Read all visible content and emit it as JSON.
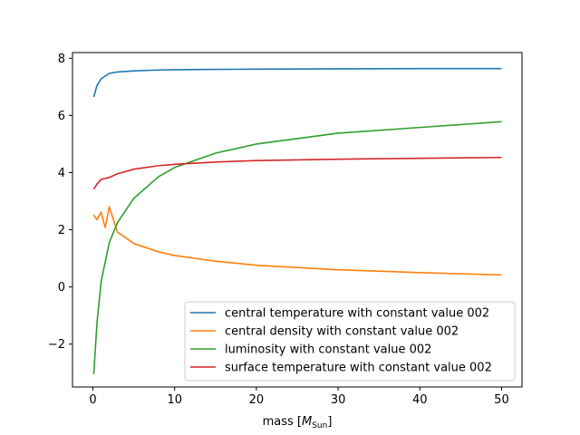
{
  "chart_data": {
    "type": "line",
    "title": "",
    "xlabel": "mass",
    "xlabel_unit_symbol": "M",
    "xlabel_unit_sub": "Sun",
    "ylabel": "",
    "xlim": [
      -2.5,
      52.5
    ],
    "ylim": [
      -3.5,
      8.2
    ],
    "xticks": [
      0,
      10,
      20,
      30,
      40,
      50
    ],
    "yticks": [
      -2,
      0,
      2,
      4,
      6,
      8
    ],
    "xtick_labels": [
      "0",
      "10",
      "20",
      "30",
      "40",
      "50"
    ],
    "ytick_labels": [
      "−2",
      "0",
      "2",
      "4",
      "6",
      "8"
    ],
    "grid": false,
    "legend_position": "lower-right",
    "series": [
      {
        "name": "central temperature with constant value 002",
        "color": "#1f77b4",
        "x": [
          0.1,
          0.5,
          1,
          2,
          3,
          5,
          8,
          10,
          15,
          20,
          30,
          40,
          50
        ],
        "y": [
          6.65,
          7.05,
          7.28,
          7.47,
          7.52,
          7.56,
          7.59,
          7.6,
          7.61,
          7.62,
          7.63,
          7.64,
          7.64
        ]
      },
      {
        "name": "central density with constant value 002",
        "color": "#ff7f0e",
        "x": [
          0.1,
          0.5,
          1,
          1.5,
          2,
          3,
          5,
          8,
          10,
          15,
          20,
          30,
          40,
          50
        ],
        "y": [
          2.52,
          2.35,
          2.62,
          2.08,
          2.8,
          1.92,
          1.52,
          1.23,
          1.1,
          0.9,
          0.76,
          0.6,
          0.5,
          0.42
        ]
      },
      {
        "name": "luminosity with constant value 002",
        "color": "#2ca02c",
        "x": [
          0.1,
          0.5,
          1,
          2,
          3,
          5,
          8,
          10,
          15,
          20,
          30,
          40,
          50
        ],
        "y": [
          -3.05,
          -1.25,
          0.18,
          1.55,
          2.25,
          3.1,
          3.85,
          4.18,
          4.68,
          5.0,
          5.38,
          5.58,
          5.78
        ]
      },
      {
        "name": "surface temperature with constant value 002",
        "color": "#d62728",
        "x": [
          0.1,
          0.5,
          1,
          2,
          3,
          5,
          8,
          10,
          15,
          20,
          30,
          40,
          50
        ],
        "y": [
          3.42,
          3.6,
          3.76,
          3.83,
          3.96,
          4.12,
          4.24,
          4.29,
          4.37,
          4.42,
          4.47,
          4.5,
          4.53
        ]
      }
    ]
  }
}
